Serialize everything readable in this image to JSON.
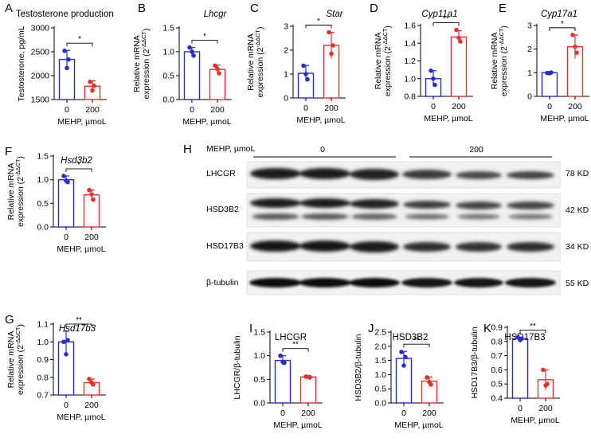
{
  "colors": {
    "control": "#2b2bd6",
    "treated": "#e8312a"
  },
  "chart_data": [
    {
      "id": "A",
      "type": "bar",
      "title": "Testosterone production",
      "title_italic": false,
      "ylabel": [
        "Testosterone, pg/mL"
      ],
      "xlabel": "MEHP, µmoL",
      "categories": [
        "0",
        "200"
      ],
      "ylim": [
        1500,
        3000
      ],
      "yticks": [
        1500,
        2000,
        2500,
        3000
      ],
      "values": [
        2340,
        1780
      ],
      "errors": [
        190,
        110
      ],
      "points": [
        [
          2520,
          2340,
          2160
        ],
        [
          1870,
          1790,
          1690
        ]
      ],
      "significance": "*"
    },
    {
      "id": "B",
      "type": "bar",
      "title": "Lhcgr",
      "title_italic": true,
      "ylabel": [
        "Relative mRNA",
        "expression (2^-ΔΔCT)"
      ],
      "xlabel": "MEHP, µmoL",
      "categories": [
        "0",
        "200"
      ],
      "ylim": [
        0,
        1.5
      ],
      "yticks": [
        0,
        0.5,
        1.0,
        1.5
      ],
      "values": [
        1.0,
        0.63
      ],
      "errors": [
        0.09,
        0.09
      ],
      "points": [
        [
          1.09,
          0.92,
          1.0
        ],
        [
          0.71,
          0.55,
          0.64
        ]
      ],
      "significance": "*"
    },
    {
      "id": "C",
      "type": "bar",
      "title": "Star",
      "title_italic": true,
      "ylabel": [
        "Relative mRNA",
        "expression (2^-ΔΔCT)"
      ],
      "xlabel": "MEHP, µmoL",
      "categories": [
        "0",
        "200"
      ],
      "ylim": [
        0,
        3
      ],
      "yticks": [
        0,
        1,
        2,
        3
      ],
      "values": [
        1.03,
        2.2
      ],
      "errors": [
        0.33,
        0.55
      ],
      "points": [
        [
          1.35,
          0.78,
          1.0
        ],
        [
          2.75,
          2.2,
          1.85
        ]
      ],
      "significance": "*"
    },
    {
      "id": "D",
      "type": "bar",
      "title": "Cyp11a1",
      "title_italic": true,
      "ylabel": [
        "Relative mRNA",
        "expression (2^-ΔΔCT)"
      ],
      "xlabel": "MEHP, µmoL",
      "categories": [
        "0",
        "200"
      ],
      "ylim": [
        0.8,
        1.6
      ],
      "yticks": [
        0.8,
        1.0,
        1.2,
        1.4,
        1.6
      ],
      "values": [
        1.0,
        1.47
      ],
      "errors": [
        0.09,
        0.07
      ],
      "points": [
        [
          1.09,
          0.93,
          1.0
        ],
        [
          1.55,
          1.42,
          1.46
        ]
      ],
      "significance": "**"
    },
    {
      "id": "E",
      "type": "bar",
      "title": "Cyp17a1",
      "title_italic": true,
      "ylabel": [
        "Relative mRNA",
        "expression (2^-ΔΔCT)"
      ],
      "xlabel": "MEHP, µmoL",
      "categories": [
        "0",
        "200"
      ],
      "ylim": [
        0,
        3
      ],
      "yticks": [
        0,
        1,
        2,
        3
      ],
      "values": [
        1.0,
        2.1
      ],
      "errors": [
        0.05,
        0.5
      ],
      "points": [
        [
          0.99,
          1.01,
          0.98
        ],
        [
          2.6,
          1.85,
          2.1
        ]
      ],
      "significance": "*"
    },
    {
      "id": "F",
      "type": "bar",
      "title": "Hsd3b2",
      "title_italic": true,
      "ylabel": [
        "Relative mRNA",
        "expression (2^-ΔΔCT)"
      ],
      "xlabel": "MEHP, µmoL",
      "categories": [
        "0",
        "200"
      ],
      "ylim": [
        0,
        1.5
      ],
      "yticks": [
        0,
        0.5,
        1.0,
        1.5
      ],
      "values": [
        1.0,
        0.68
      ],
      "errors": [
        0.08,
        0.1
      ],
      "points": [
        [
          1.08,
          0.95,
          0.98
        ],
        [
          0.78,
          0.58,
          0.69
        ]
      ],
      "significance": "*"
    },
    {
      "id": "G",
      "type": "bar",
      "title": "Hsd17b3",
      "title_italic": true,
      "ylabel": [
        "Relative mRNA",
        "expression (2^-ΔΔCT)"
      ],
      "xlabel": "MEHP, µmoL",
      "categories": [
        "0",
        "200"
      ],
      "ylim": [
        0.7,
        1.1
      ],
      "yticks": [
        0.7,
        0.8,
        0.9,
        1.0,
        1.1
      ],
      "values": [
        1.0,
        0.77
      ],
      "errors": [
        0.06,
        0.02
      ],
      "points": [
        [
          1.0,
          1.01,
          0.93
        ],
        [
          0.79,
          0.76,
          0.77
        ]
      ],
      "significance": "**"
    },
    {
      "id": "I",
      "type": "bar",
      "title": "LHCGR",
      "title_italic": false,
      "ylabel": [
        "LHCGR/β-tubulin"
      ],
      "xlabel": "MEHP, µmoL",
      "categories": [
        "0",
        "200"
      ],
      "ylim": [
        0,
        1.5
      ],
      "yticks": [
        0,
        0.5,
        1.0,
        1.5
      ],
      "values": [
        0.9,
        0.55
      ],
      "errors": [
        0.1,
        0.03
      ],
      "points": [
        [
          1.0,
          0.85,
          0.87
        ],
        [
          0.56,
          0.54,
          0.55
        ]
      ],
      "significance": "**"
    },
    {
      "id": "J",
      "type": "bar",
      "title": "HSD3B2",
      "title_italic": false,
      "ylabel": [
        "HSD3B2/β-tubulin"
      ],
      "xlabel": "MEHP, µmoL",
      "categories": [
        "0",
        "200"
      ],
      "ylim": [
        0,
        2.5
      ],
      "yticks": [
        0,
        0.5,
        1.0,
        1.5,
        2.0,
        2.5
      ],
      "values": [
        1.57,
        0.77
      ],
      "errors": [
        0.25,
        0.15
      ],
      "points": [
        [
          1.8,
          1.62,
          1.32
        ],
        [
          0.9,
          0.65,
          0.74
        ]
      ],
      "significance": "**"
    },
    {
      "id": "K",
      "type": "bar",
      "title": "HSD17B3",
      "title_italic": false,
      "ylabel": [
        "HSD17B3/β-tubulin"
      ],
      "xlabel": "MEHP, µmoL",
      "categories": [
        "0",
        "200"
      ],
      "ylim": [
        0.4,
        0.9
      ],
      "yticks": [
        0.4,
        0.5,
        0.6,
        0.7,
        0.8,
        0.9
      ],
      "values": [
        0.82,
        0.53
      ],
      "errors": [
        0.01,
        0.07
      ],
      "points": [
        [
          0.83,
          0.82,
          0.81
        ],
        [
          0.6,
          0.5,
          0.49
        ]
      ],
      "significance": "**"
    }
  ],
  "blot": {
    "letter": "H",
    "treatment_label": "MEHP, µmoL",
    "groups": [
      "0",
      "200"
    ],
    "rows": [
      {
        "protein": "LHCGR",
        "size": "78 KD"
      },
      {
        "protein": "HSD3B2",
        "size": "42 KD"
      },
      {
        "protein": "HSD17B3",
        "size": "34 KD"
      },
      {
        "protein": "β-tubulin",
        "size": "55 KD"
      }
    ]
  }
}
